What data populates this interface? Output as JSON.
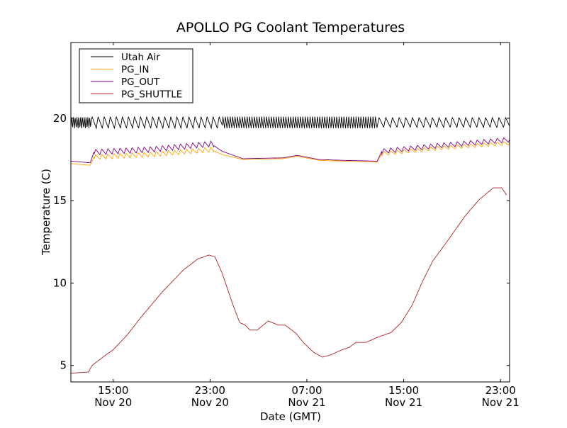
{
  "chart_data": {
    "type": "line",
    "title": "APOLLO PG Coolant Temperatures",
    "xlabel": "Date (GMT)",
    "ylabel": "Temperature (C)",
    "x_units": "hours since Nov 20 00:00 GMT",
    "xlim": [
      11.5,
      47.75
    ],
    "ylim": [
      4.0,
      24.6
    ],
    "yticks": [
      5,
      10,
      15,
      20
    ],
    "xticks": [
      {
        "x": 15,
        "time": "15:00",
        "date": "Nov 20"
      },
      {
        "x": 23,
        "time": "23:00",
        "date": "Nov 20"
      },
      {
        "x": 31,
        "time": "07:00",
        "date": "Nov 21"
      },
      {
        "x": 39,
        "time": "15:00",
        "date": "Nov 21"
      },
      {
        "x": 47,
        "time": "23:00",
        "date": "Nov 21"
      }
    ],
    "grid": false,
    "legend_position": "top-left",
    "series": [
      {
        "name": "Utah Air",
        "color": "#000000",
        "points": [
          [
            11.5,
            19.75
          ],
          [
            47.75,
            19.75
          ]
        ],
        "oscillation": [
          {
            "from": 11.5,
            "to": 13.1,
            "amplitude": 0.35,
            "period": 0.15
          },
          {
            "from": 13.1,
            "to": 24.0,
            "amplitude": 0.35,
            "period": 0.5
          },
          {
            "from": 24.0,
            "to": 36.8,
            "amplitude": 0.35,
            "period": 0.2
          },
          {
            "from": 36.8,
            "to": 47.75,
            "amplitude": 0.3,
            "period": 0.55
          }
        ]
      },
      {
        "name": "PG_IN",
        "color": "#ffa500",
        "points": [
          [
            11.5,
            17.25
          ],
          [
            13.1,
            17.15
          ],
          [
            13.4,
            17.65
          ],
          [
            18,
            17.8
          ],
          [
            23.1,
            18.1
          ],
          [
            24,
            17.8
          ],
          [
            25.7,
            17.5
          ],
          [
            29,
            17.55
          ],
          [
            30.2,
            17.7
          ],
          [
            32,
            17.45
          ],
          [
            34,
            17.4
          ],
          [
            36.8,
            17.35
          ],
          [
            37.2,
            17.85
          ],
          [
            42,
            18.2
          ],
          [
            47.75,
            18.5
          ]
        ],
        "oscillation": [
          {
            "from": 13.4,
            "to": 23.3,
            "amplitude": 0.15,
            "period": 0.5
          },
          {
            "from": 37.2,
            "to": 47.75,
            "amplitude": 0.12,
            "period": 0.55
          }
        ]
      },
      {
        "name": "PG_OUT",
        "color": "#800080",
        "points": [
          [
            11.5,
            17.4
          ],
          [
            13.1,
            17.3
          ],
          [
            13.4,
            17.95
          ],
          [
            18,
            18.1
          ],
          [
            23.1,
            18.45
          ],
          [
            24,
            18.0
          ],
          [
            25.7,
            17.55
          ],
          [
            29,
            17.6
          ],
          [
            30.2,
            17.75
          ],
          [
            32,
            17.5
          ],
          [
            34,
            17.45
          ],
          [
            36.8,
            17.4
          ],
          [
            37.2,
            18.0
          ],
          [
            42,
            18.35
          ],
          [
            47.75,
            18.7
          ]
        ],
        "oscillation": [
          {
            "from": 13.4,
            "to": 23.3,
            "amplitude": 0.17,
            "period": 0.5
          },
          {
            "from": 37.2,
            "to": 47.75,
            "amplitude": 0.15,
            "period": 0.55
          }
        ]
      },
      {
        "name": "PG_SHUTTLE",
        "color": "#b22222",
        "points": [
          [
            11.5,
            4.53
          ],
          [
            12.95,
            4.6
          ],
          [
            13.25,
            5.0
          ],
          [
            14.4,
            5.65
          ],
          [
            15,
            5.95
          ],
          [
            16.15,
            6.85
          ],
          [
            17.3,
            7.93
          ],
          [
            19.1,
            9.5
          ],
          [
            20.8,
            10.8
          ],
          [
            22,
            11.47
          ],
          [
            22.9,
            11.7
          ],
          [
            23.4,
            11.6
          ],
          [
            24,
            10.6
          ],
          [
            24.9,
            8.66
          ],
          [
            25.45,
            7.6
          ],
          [
            25.9,
            7.45
          ],
          [
            26.3,
            7.15
          ],
          [
            26.9,
            7.15
          ],
          [
            27.8,
            7.7
          ],
          [
            28.65,
            7.45
          ],
          [
            29.2,
            7.45
          ],
          [
            30.1,
            6.95
          ],
          [
            30.7,
            6.4
          ],
          [
            31.55,
            5.8
          ],
          [
            32.3,
            5.5
          ],
          [
            33,
            5.65
          ],
          [
            33.9,
            5.95
          ],
          [
            34.5,
            6.1
          ],
          [
            35.05,
            6.4
          ],
          [
            35.9,
            6.4
          ],
          [
            36.8,
            6.7
          ],
          [
            37.95,
            7.0
          ],
          [
            38.8,
            7.6
          ],
          [
            39.7,
            8.66
          ],
          [
            40.6,
            10.17
          ],
          [
            41.4,
            11.34
          ],
          [
            42.6,
            12.54
          ],
          [
            44.05,
            14.05
          ],
          [
            45.2,
            15.04
          ],
          [
            46.4,
            15.78
          ],
          [
            47.1,
            15.78
          ],
          [
            47.5,
            15.35
          ]
        ],
        "oscillation": []
      }
    ]
  }
}
